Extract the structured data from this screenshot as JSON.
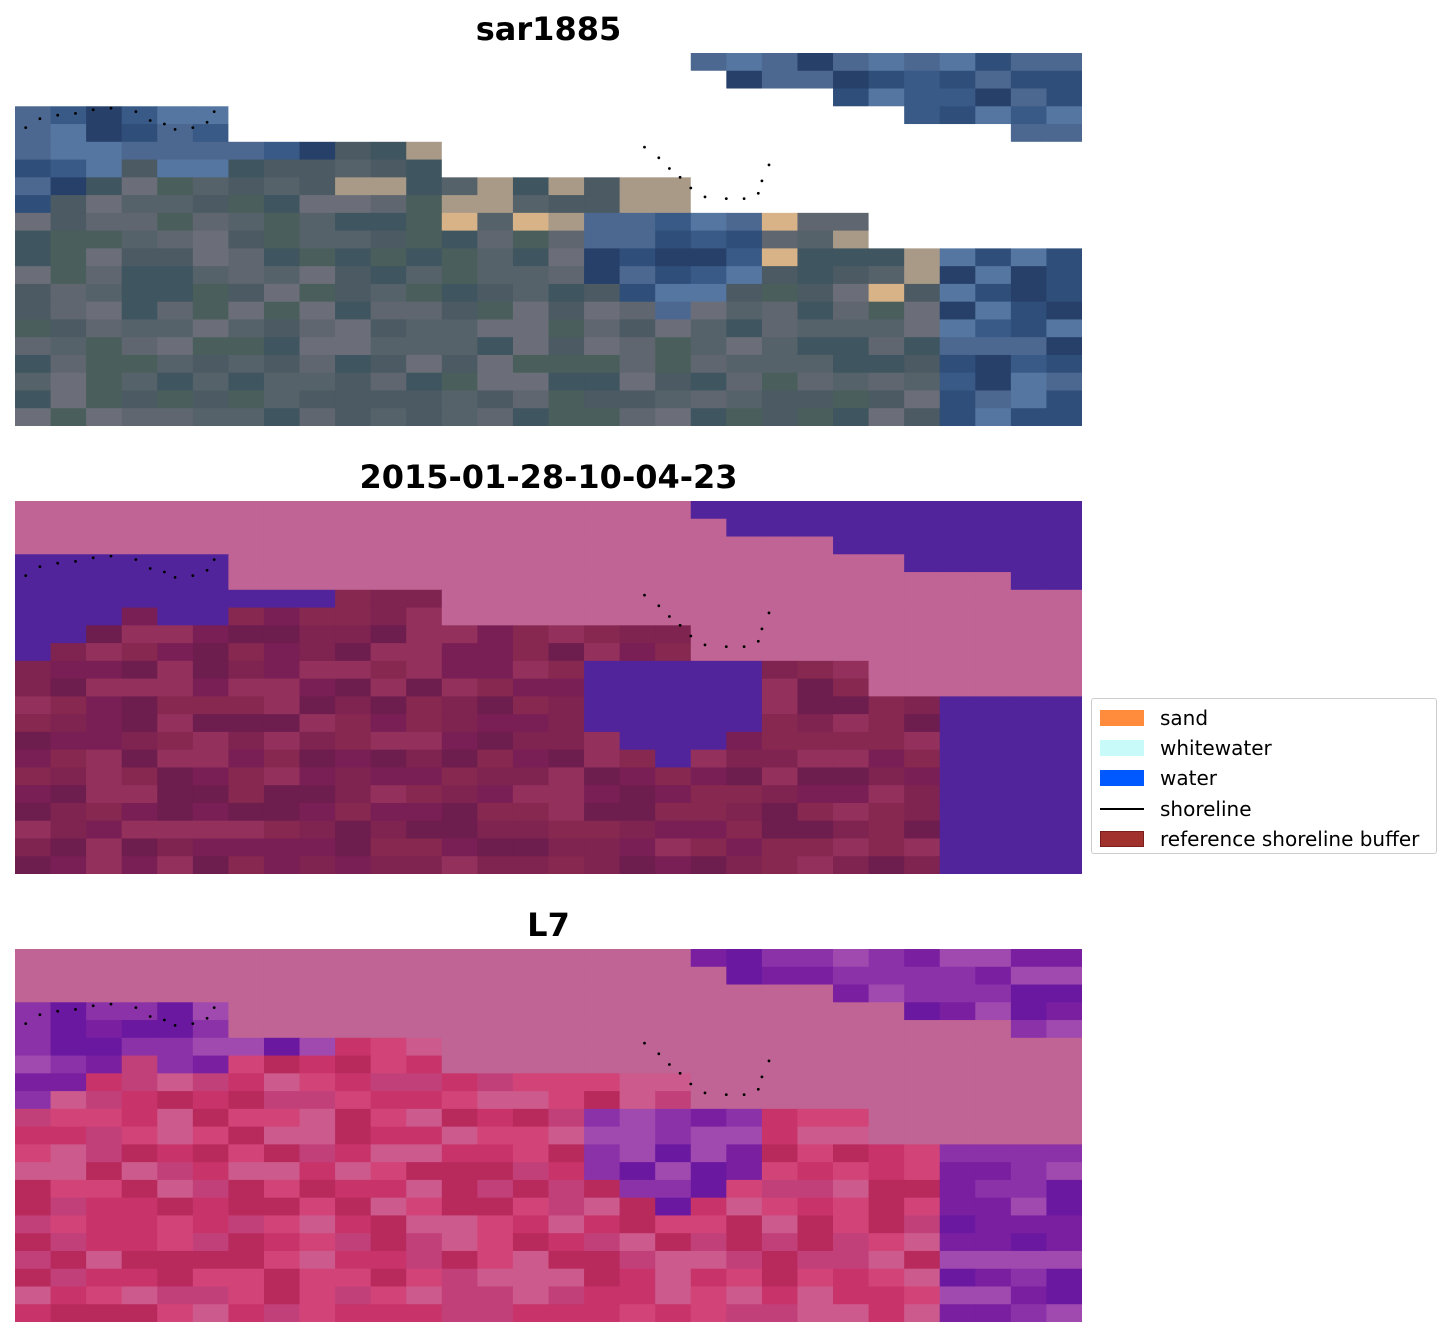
{
  "figure": {
    "panels": [
      {
        "id": "rgb",
        "title": "sar1885",
        "layer": "rgb composite"
      },
      {
        "id": "classified",
        "title": "2015-01-28-10-04-23",
        "layer": "classified image"
      },
      {
        "id": "index",
        "title": "L7",
        "layer": "index image"
      }
    ],
    "legend": {
      "items": [
        {
          "label": "sand",
          "kind": "patch",
          "color": "#ff8c3c"
        },
        {
          "label": "whitewater",
          "kind": "patch",
          "color": "#c8fafa"
        },
        {
          "label": "water",
          "kind": "patch",
          "color": "#0058ff"
        },
        {
          "label": "shoreline",
          "kind": "line",
          "color": "#000000"
        },
        {
          "label": "reference shoreline buffer",
          "kind": "patch",
          "color": "#a0312d",
          "edge": "#7a1f1c"
        }
      ]
    },
    "colors": {
      "masked_region": "#bf6494",
      "water_overlay": "#52249c",
      "land_class": "#7a1f55"
    }
  }
}
